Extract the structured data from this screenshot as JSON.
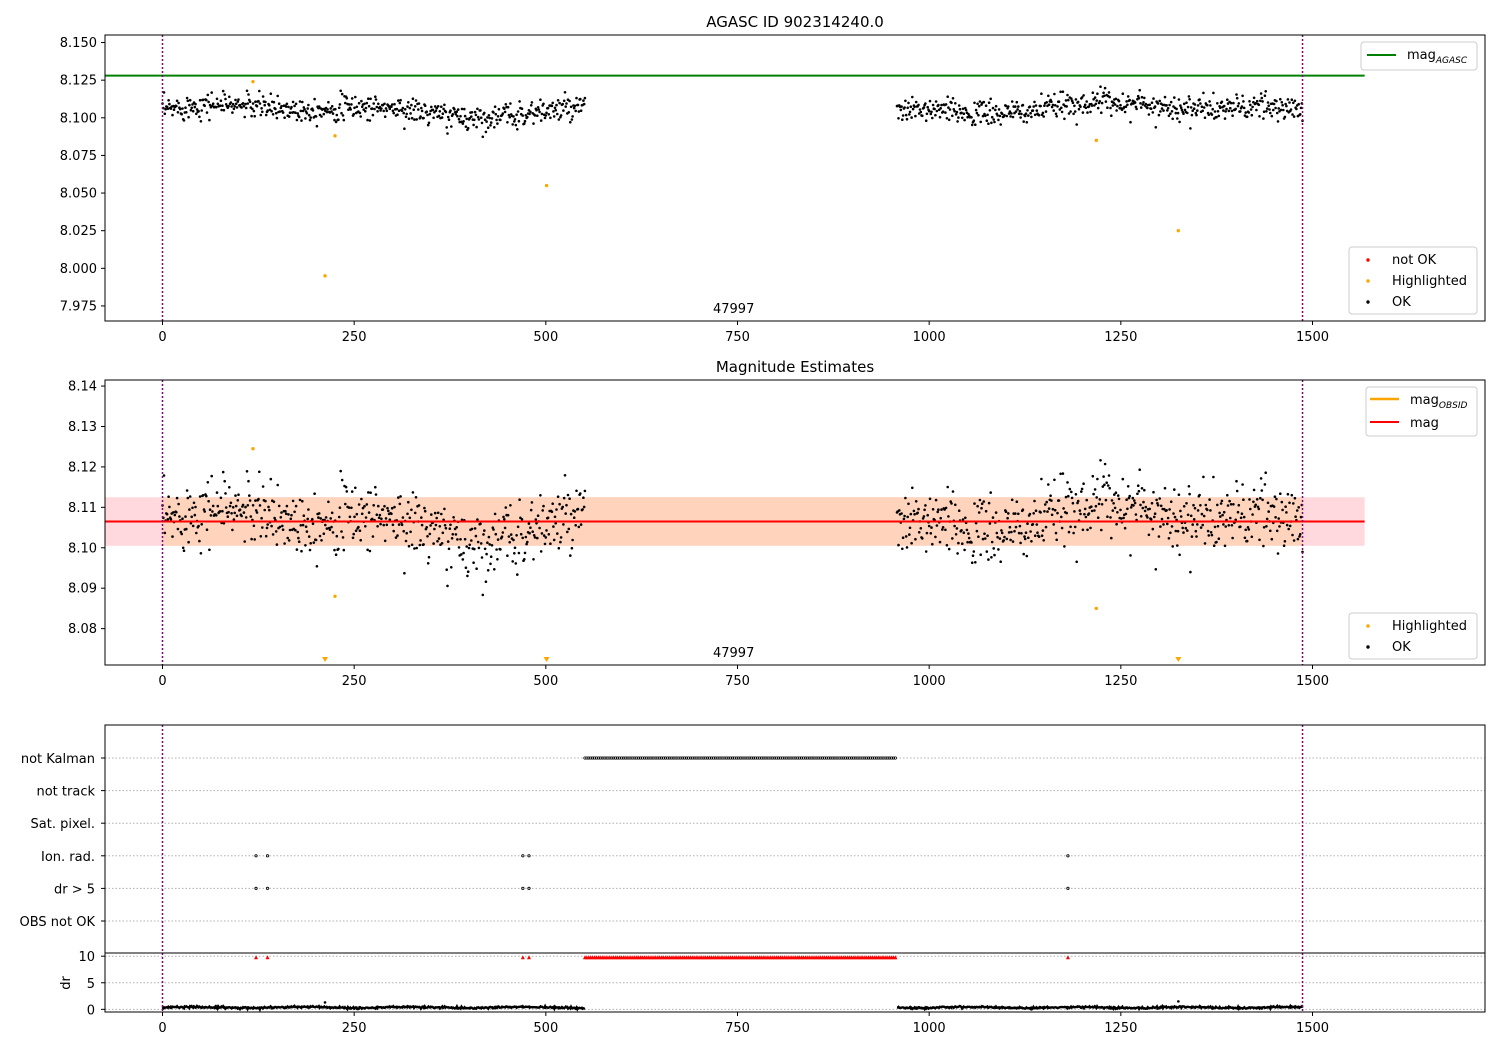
{
  "chart_data": [
    {
      "type": "scatter",
      "title": "AGASC ID 902314240.0",
      "xlim": [
        -75,
        1725
      ],
      "ylim": [
        7.965,
        8.155
      ],
      "x_ticks": [
        0,
        250,
        500,
        750,
        1000,
        1250,
        1500
      ],
      "y_ticks": [
        7.975,
        8.0,
        8.025,
        8.05,
        8.075,
        8.1,
        8.125,
        8.15
      ],
      "y_tick_labels": [
        "7.975",
        "8.000",
        "8.025",
        "8.050",
        "8.075",
        "8.100",
        "8.125",
        "8.150"
      ],
      "obsid_label": "47997",
      "obsid_label_x": 745,
      "obs_boundaries_x": [
        0,
        1487
      ],
      "mag_agasc": 8.128,
      "mag_agasc_x_range": [
        -75,
        1568
      ],
      "segments": [
        {
          "x_start": 0,
          "x_end": 551,
          "n": 551,
          "mean": 8.105,
          "noise": 0.0055
        },
        {
          "x_start": 958,
          "x_end": 1487,
          "n": 529,
          "mean": 8.106,
          "noise": 0.0055
        }
      ],
      "highlighted_points": [
        {
          "x": 118,
          "y": 8.124
        },
        {
          "x": 225,
          "y": 8.088
        },
        {
          "x": 212,
          "y": 7.995
        },
        {
          "x": 501,
          "y": 8.055
        },
        {
          "x": 1218,
          "y": 8.085
        },
        {
          "x": 1325,
          "y": 8.025
        }
      ],
      "legend_top": {
        "label_main": "mag",
        "label_sub": "AGASC",
        "color": "#008000",
        "position": "top-right"
      },
      "legend_bottom": {
        "position": "bottom-right",
        "entries": [
          {
            "label": "not OK",
            "color": "#ff0000"
          },
          {
            "label": "Highlighted",
            "color": "#ffa500"
          },
          {
            "label": "OK",
            "color": "#000000"
          }
        ]
      }
    },
    {
      "type": "scatter",
      "title": "Magnitude Estimates",
      "xlim": [
        -75,
        1725
      ],
      "ylim": [
        8.071,
        8.1415
      ],
      "x_ticks": [
        0,
        250,
        500,
        750,
        1000,
        1250,
        1500
      ],
      "y_ticks": [
        8.08,
        8.09,
        8.1,
        8.11,
        8.12,
        8.13,
        8.14
      ],
      "y_tick_labels": [
        "8.08",
        "8.09",
        "8.10",
        "8.11",
        "8.12",
        "8.13",
        "8.14"
      ],
      "obsid_label": "47997",
      "obsid_label_x": 745,
      "obs_boundaries_x": [
        0,
        1487
      ],
      "mag": 8.1065,
      "mag_band": [
        8.1005,
        8.1125
      ],
      "mag_band_x_range": [
        -75,
        1568
      ],
      "mag_obsid_x_range": [
        0,
        1487
      ],
      "band_colors": {
        "outer": "#ffc0c8",
        "inner": "#ffd0b0"
      },
      "highlighted_points": [
        {
          "x": 118,
          "y": 8.1245
        },
        {
          "x": 225,
          "y": 8.088
        },
        {
          "x": 1218,
          "y": 8.085
        }
      ],
      "off_scale_markers_x": [
        212,
        501,
        1325
      ],
      "legend_top": {
        "position": "top-right",
        "entries": [
          {
            "label_main": "mag",
            "label_sub": "OBSID",
            "color": "#ffa500"
          },
          {
            "label_main": "mag",
            "label_sub": "",
            "color": "#ff0000"
          }
        ]
      },
      "legend_bottom": {
        "position": "bottom-right",
        "entries": [
          {
            "label": "Highlighted",
            "color": "#ffa500"
          },
          {
            "label": "OK",
            "color": "#000000"
          }
        ]
      }
    },
    {
      "type": "scatter",
      "xlim": [
        -75,
        1725
      ],
      "x_ticks": [
        0,
        250,
        500,
        750,
        1000,
        1250,
        1500
      ],
      "obs_boundaries_x": [
        0,
        1487
      ],
      "flag_rows": [
        {
          "label": "not Kalman",
          "points_x": [],
          "ranges": [
            [
              551,
              958
            ]
          ]
        },
        {
          "label": "not track",
          "points_x": [],
          "ranges": []
        },
        {
          "label": "Sat. pixel.",
          "points_x": [],
          "ranges": []
        },
        {
          "label": "Ion. rad.",
          "points_x": [
            122,
            137,
            470,
            478,
            1181
          ],
          "ranges": []
        },
        {
          "label": "dr > 5",
          "points_x": [
            122,
            137,
            470,
            478,
            1181
          ],
          "ranges": []
        },
        {
          "label": "OBS not OK",
          "points_x": [],
          "ranges": []
        }
      ],
      "dr": {
        "ylabel": "dr",
        "y_ticks": [
          0,
          5,
          10
        ],
        "ylim": [
          -0.5,
          10.6
        ],
        "capped_points_x": [
          122,
          137,
          470,
          478,
          1181
        ],
        "capped_ranges": [
          [
            551,
            958
          ]
        ],
        "segments": [
          {
            "x_start": 0,
            "x_end": 551,
            "mean": 0.35,
            "noise": 0.18
          },
          {
            "x_start": 958,
            "x_end": 1487,
            "mean": 0.35,
            "noise": 0.18
          }
        ],
        "spikes": [
          {
            "x": 212,
            "y": 1.3
          },
          {
            "x": 1325,
            "y": 1.5
          }
        ]
      }
    }
  ]
}
